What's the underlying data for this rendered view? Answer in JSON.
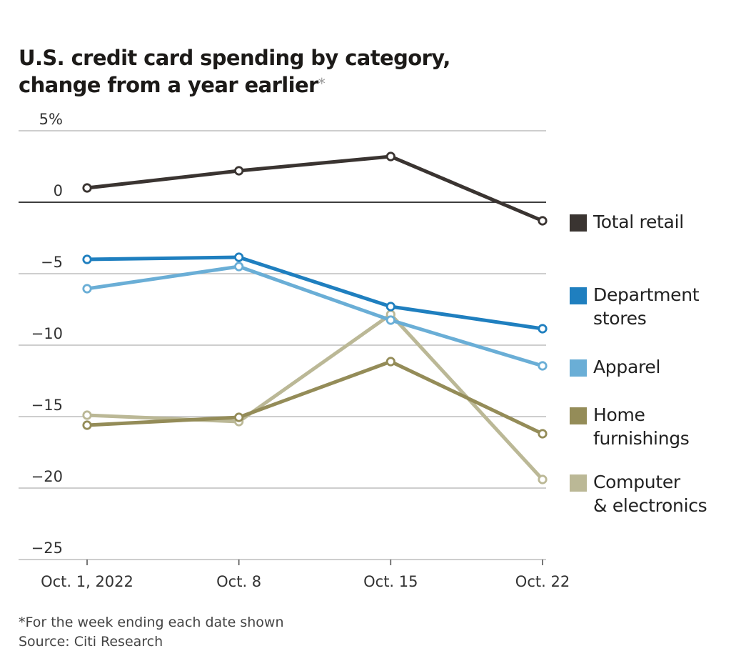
{
  "title": {
    "line1": "U.S. credit card spending by category,",
    "line2": "change from a year earlier",
    "asterisk": "*"
  },
  "footnote": {
    "note": "*For the week ending each date shown",
    "source": "Source: Citi Research"
  },
  "chart_data": {
    "type": "line",
    "title": "U.S. credit card spending by category, change from a year earlier*",
    "xlabel": "",
    "ylabel": "",
    "x": [
      "Oct. 1, 2022",
      "Oct. 8",
      "Oct. 15",
      "Oct. 22"
    ],
    "ylim": [
      -25,
      5
    ],
    "yticks": [
      5,
      0,
      -5,
      -10,
      -15,
      -20,
      -25
    ],
    "ytick_labels": [
      "5%",
      "0",
      "−5",
      "−10",
      "−15",
      "−20",
      "−25"
    ],
    "grid": true,
    "legend_position": "right",
    "series": [
      {
        "name": "Total retail",
        "color": "#3a3431",
        "values": [
          1.0,
          2.2,
          3.2,
          -1.3
        ]
      },
      {
        "name": "Department stores",
        "color": "#1f7fbf",
        "values": [
          -4.0,
          -3.85,
          -7.3,
          -8.85
        ]
      },
      {
        "name": "Apparel",
        "color": "#6aaed6",
        "values": [
          -6.05,
          -4.5,
          -8.25,
          -11.45
        ]
      },
      {
        "name": "Home furnishings",
        "color": "#948c58",
        "values": [
          -15.6,
          -15.05,
          -11.15,
          -16.2
        ]
      },
      {
        "name": "Computer & electronics",
        "color": "#bbb896",
        "values": [
          -14.9,
          -15.35,
          -7.85,
          -19.4
        ]
      }
    ]
  },
  "legend": [
    {
      "label": "Total retail",
      "color": "#3a3431"
    },
    {
      "label": "Department\nstores",
      "color": "#1f7fbf"
    },
    {
      "label": "Apparel",
      "color": "#6aaed6"
    },
    {
      "label": "Home\nfurnishings",
      "color": "#948c58"
    },
    {
      "label": "Computer\n& electronics",
      "color": "#bbb896"
    }
  ]
}
